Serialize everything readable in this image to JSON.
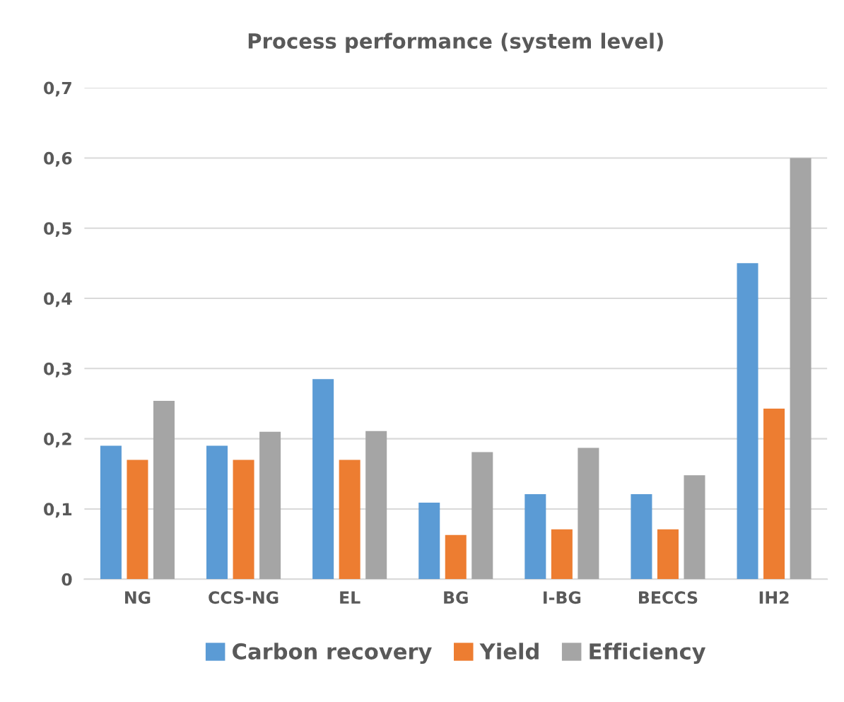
{
  "chart_data": {
    "type": "bar",
    "title": "Process performance (system level)",
    "categories": [
      "NG",
      "CCS-NG",
      "EL",
      "BG",
      "I-BG",
      "BECCS",
      "IH2"
    ],
    "series": [
      {
        "name": "Carbon recovery",
        "color": "#5b9bd5",
        "values": [
          0.19,
          0.19,
          0.285,
          0.109,
          0.121,
          0.121,
          0.45
        ]
      },
      {
        "name": "Yield",
        "color": "#ed7d31",
        "values": [
          0.17,
          0.17,
          0.17,
          0.063,
          0.071,
          0.071,
          0.243
        ]
      },
      {
        "name": "Efficiency",
        "color": "#a5a5a5",
        "values": [
          0.254,
          0.21,
          0.211,
          0.181,
          0.187,
          0.148,
          0.6
        ]
      }
    ],
    "ylim": [
      0,
      0.7
    ],
    "yticks": [
      {
        "value": 0,
        "label": "0"
      },
      {
        "value": 0.1,
        "label": "0,1"
      },
      {
        "value": 0.2,
        "label": "0,2"
      },
      {
        "value": 0.3,
        "label": "0,3"
      },
      {
        "value": 0.4,
        "label": "0,4"
      },
      {
        "value": 0.5,
        "label": "0,5"
      },
      {
        "value": 0.6,
        "label": "0,6"
      },
      {
        "value": 0.7,
        "label": "0,7"
      }
    ],
    "grid": "y",
    "legend": "bottom"
  }
}
